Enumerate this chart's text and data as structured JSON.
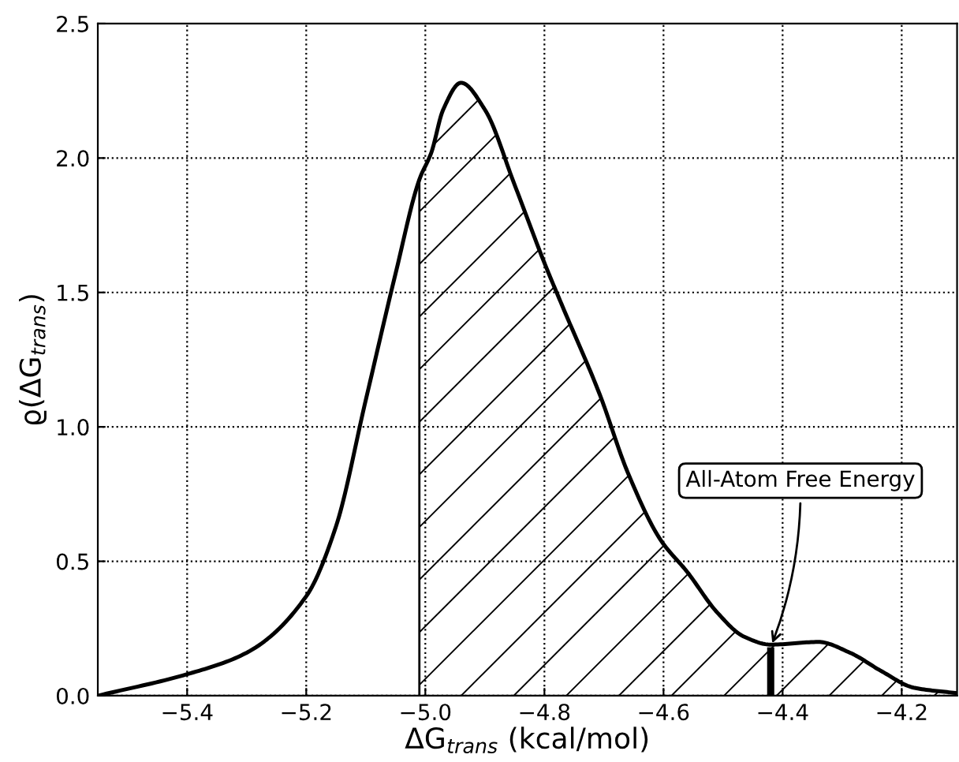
{
  "chart_data": {
    "type": "line",
    "xlabel": "ΔG$_{trans}$ (kcal/mol)",
    "ylabel": "ϱ(ΔG$_{trans}$)",
    "series": [
      {
        "color": "#000000",
        "x": [
          -5.55,
          -5.4,
          -5.3,
          -5.2,
          -5.15,
          -5.1,
          -5.05,
          -5.01,
          -4.99,
          -4.97,
          -4.94,
          -4.9,
          -4.85,
          -4.8,
          -4.77,
          -4.707,
          -4.66,
          -4.605,
          -4.56,
          -4.51,
          -4.465,
          -4.42,
          -4.34,
          -4.287,
          -4.233,
          -4.18,
          -4.11
        ],
        "values": [
          0.0,
          0.08,
          0.16,
          0.37,
          0.63,
          1.1,
          1.57,
          1.92,
          2.02,
          2.18,
          2.28,
          2.18,
          1.9,
          1.61,
          1.45,
          1.12,
          0.83,
          0.58,
          0.46,
          0.31,
          0.22,
          0.19,
          0.2,
          0.16,
          0.09,
          0.03,
          0.01
        ]
      },
      {
        "type": "area",
        "color": "#000000",
        "x": [
          -5.01,
          -4.99,
          -4.97,
          -4.94,
          -4.9,
          -4.85,
          -4.8,
          -4.77,
          -4.707,
          -4.66,
          -4.605,
          -4.56,
          -4.51,
          -4.465,
          -4.42,
          -4.34,
          -4.287,
          -4.233,
          -4.18,
          -4.11
        ],
        "values": [
          1.92,
          2.02,
          2.18,
          2.28,
          2.18,
          1.9,
          1.61,
          1.45,
          1.12,
          0.83,
          0.58,
          0.46,
          0.31,
          0.22,
          0.19,
          0.2,
          0.16,
          0.09,
          0.03,
          0.01
        ]
      },
      {
        "type": "bar",
        "color": "#000000",
        "x": [
          -4.42
        ],
        "values": [
          0.18
        ]
      }
    ],
    "annotations": [
      {
        "text": "All-Atom Free Energy",
        "x": -4.42,
        "y": 0.18
      }
    ],
    "xlim": [
      -5.55,
      -4.107
    ],
    "ylim": [
      0,
      2.5
    ],
    "xticks": [
      {
        "value": -5.4,
        "label": "−5.4"
      },
      {
        "value": -5.2,
        "label": "−5.2"
      },
      {
        "value": -5.0,
        "label": "−5.0"
      },
      {
        "value": -4.8,
        "label": "−4.8"
      },
      {
        "value": -4.6,
        "label": "−4.6"
      },
      {
        "value": -4.4,
        "label": "−4.4"
      },
      {
        "value": -4.2,
        "label": "−4.2"
      }
    ],
    "yticks": [
      {
        "value": 0,
        "label": "0.0"
      },
      {
        "value": 0.5,
        "label": "0.5"
      },
      {
        "value": 1.0,
        "label": "1.0"
      },
      {
        "value": 1.5,
        "label": "1.5"
      },
      {
        "value": 2.0,
        "label": "2.0"
      },
      {
        "value": 2.5,
        "label": "2.5"
      }
    ],
    "grid": true
  }
}
